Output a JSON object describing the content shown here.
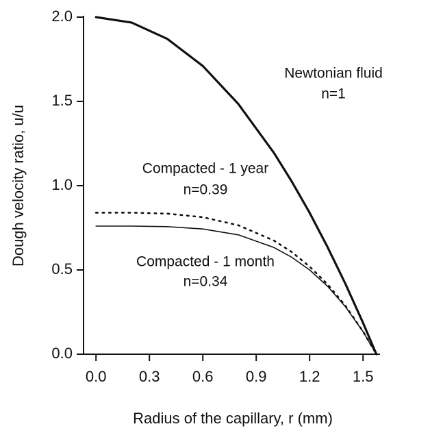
{
  "chart_data": {
    "type": "line",
    "xlabel": "Radius of the capillary, r (mm)",
    "ylabel": "Dough velocity ratio, u/u",
    "x": [
      0,
      0.2,
      0.4,
      0.6,
      0.8,
      1.0,
      1.1,
      1.2,
      1.3,
      1.4,
      1.5,
      1.575
    ],
    "series": [
      {
        "name": "Newtonian fluid",
        "color": "#111111",
        "style": "thick",
        "values": [
          2.0,
          1.968,
          1.871,
          1.71,
          1.484,
          1.194,
          1.024,
          0.839,
          0.637,
          0.42,
          0.186,
          0
        ]
      },
      {
        "name": "Compacted - 1 year",
        "color": "#111111",
        "style": "dotted",
        "values": [
          0.84,
          0.84,
          0.834,
          0.813,
          0.765,
          0.674,
          0.606,
          0.52,
          0.416,
          0.289,
          0.135,
          0
        ]
      },
      {
        "name": "Compacted - 1 month",
        "color": "#111111",
        "style": "thin",
        "values": [
          0.76,
          0.76,
          0.757,
          0.743,
          0.708,
          0.633,
          0.575,
          0.5,
          0.404,
          0.283,
          0.134,
          0
        ]
      }
    ],
    "annotations": [
      "Newtonian fluid",
      "n=1",
      "Compacted - 1 year",
      "n=0.39",
      "Compacted - 1 month",
      "n=0.34"
    ],
    "xlim": [
      -0.07,
      1.58
    ],
    "ylim": [
      0,
      2.0
    ],
    "xticks": [
      {
        "value": 0,
        "label": "0.0"
      },
      0.3,
      0.6,
      0.9,
      1.2,
      1.5
    ],
    "yticks": [
      {
        "value": 0,
        "label": "0.0"
      },
      0.5,
      {
        "value": 1,
        "label": "1.0"
      },
      1.5,
      {
        "value": 2,
        "label": "2.0"
      }
    ],
    "grid": false
  }
}
